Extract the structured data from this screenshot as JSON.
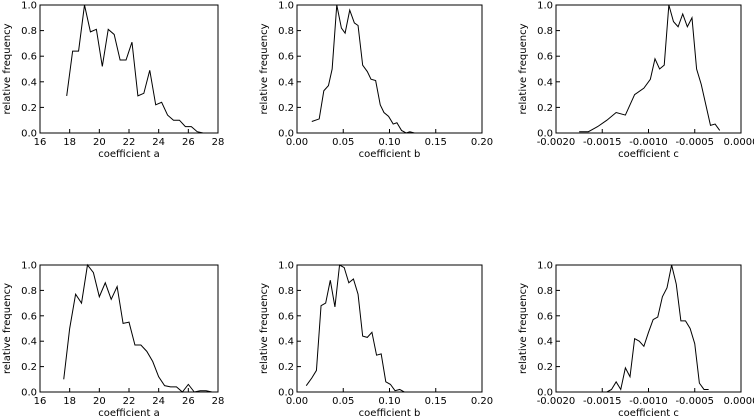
{
  "chart_data": [
    {
      "type": "line",
      "xlabel": "coefficient a",
      "ylabel": "relative frequency",
      "color": "#000000",
      "x": [
        17.8,
        18.2,
        18.6,
        19.0,
        19.4,
        19.8,
        20.2,
        20.6,
        21.0,
        21.4,
        21.8,
        22.2,
        22.6,
        23.0,
        23.4,
        23.8,
        24.2,
        24.6,
        25.0,
        25.4,
        25.8,
        26.2,
        26.6,
        27.0
      ],
      "values": [
        0.29,
        0.64,
        0.64,
        1.0,
        0.79,
        0.81,
        0.52,
        0.81,
        0.77,
        0.57,
        0.57,
        0.71,
        0.29,
        0.31,
        0.49,
        0.22,
        0.24,
        0.14,
        0.1,
        0.1,
        0.05,
        0.05,
        0.01,
        0.0
      ],
      "xlim": [
        16,
        28
      ],
      "xticks": [
        16,
        18,
        20,
        22,
        24,
        26,
        28
      ],
      "ylim": [
        0,
        1
      ],
      "yticks": [
        {
          "value": 0,
          "label": "0.0"
        },
        0.2,
        0.4,
        0.6,
        0.8,
        {
          "value": 1,
          "label": "1.0"
        }
      ]
    },
    {
      "type": "line",
      "xlabel": "coefficient b",
      "ylabel": "relative frequency",
      "color": "#000000",
      "x": [
        0.016,
        0.024,
        0.029,
        0.034,
        0.038,
        0.043,
        0.048,
        0.052,
        0.057,
        0.062,
        0.066,
        0.071,
        0.076,
        0.08,
        0.085,
        0.09,
        0.094,
        0.099,
        0.104,
        0.108,
        0.113,
        0.118,
        0.122,
        0.127
      ],
      "values": [
        0.09,
        0.11,
        0.33,
        0.37,
        0.5,
        1.0,
        0.82,
        0.78,
        0.96,
        0.86,
        0.84,
        0.53,
        0.48,
        0.42,
        0.41,
        0.22,
        0.16,
        0.13,
        0.07,
        0.08,
        0.02,
        0.0,
        0.01,
        0.0
      ],
      "xlim": [
        0,
        0.2
      ],
      "xticks": [
        {
          "value": 0,
          "label": "0.00"
        },
        0.05,
        {
          "value": 0.1,
          "label": "0.10"
        },
        0.15,
        {
          "value": 0.2,
          "label": "0.20"
        }
      ],
      "ylim": [
        0,
        1
      ],
      "yticks": [
        {
          "value": 0,
          "label": "0.0"
        },
        0.2,
        0.4,
        0.6,
        0.8,
        {
          "value": 1,
          "label": "1.0"
        }
      ]
    },
    {
      "type": "line",
      "xlabel": "coefficient c",
      "ylabel": "relative frequency",
      "color": "#000000",
      "x": [
        -0.00175,
        -0.00165,
        -0.00155,
        -0.00145,
        -0.00135,
        -0.00125,
        -0.00115,
        -0.00105,
        -0.00098,
        -0.00093,
        -0.00088,
        -0.00083,
        -0.00078,
        -0.00073,
        -0.00068,
        -0.00063,
        -0.00058,
        -0.00053,
        -0.00048,
        -0.00043,
        -0.00038,
        -0.00033,
        -0.00028,
        -0.00023
      ],
      "values": [
        0.01,
        0.01,
        0.05,
        0.1,
        0.16,
        0.14,
        0.3,
        0.35,
        0.42,
        0.58,
        0.5,
        0.53,
        1.0,
        0.87,
        0.83,
        0.93,
        0.83,
        0.9,
        0.5,
        0.38,
        0.22,
        0.06,
        0.07,
        0.02
      ],
      "xlim": [
        -0.002,
        0
      ],
      "xticks": [
        {
          "value": -0.002,
          "label": "-0.0020"
        },
        -0.0015,
        {
          "value": -0.001,
          "label": "-0.0010"
        },
        -0.0005,
        {
          "value": 0,
          "label": "0.0000"
        }
      ],
      "ylim": [
        0,
        1
      ],
      "yticks": [
        {
          "value": 0,
          "label": "0.0"
        },
        0.2,
        0.4,
        0.6,
        0.8,
        {
          "value": 1,
          "label": "1.0"
        }
      ]
    },
    {
      "type": "line",
      "xlabel": "coefficient a",
      "ylabel": "relative frequency",
      "color": "#000000",
      "x": [
        17.6,
        18.0,
        18.4,
        18.8,
        19.2,
        19.6,
        20.0,
        20.4,
        20.8,
        21.2,
        21.6,
        22.0,
        22.4,
        22.8,
        23.2,
        23.6,
        24.0,
        24.4,
        24.8,
        25.2,
        25.6,
        26.0,
        26.4,
        26.8,
        27.2,
        27.6
      ],
      "values": [
        0.1,
        0.5,
        0.77,
        0.7,
        1.0,
        0.94,
        0.75,
        0.86,
        0.73,
        0.83,
        0.54,
        0.55,
        0.37,
        0.37,
        0.32,
        0.24,
        0.12,
        0.05,
        0.04,
        0.04,
        0.0,
        0.06,
        0.0,
        0.01,
        0.01,
        0.0
      ],
      "xlim": [
        16,
        28
      ],
      "xticks": [
        16,
        18,
        20,
        22,
        24,
        26,
        28
      ],
      "ylim": [
        0,
        1
      ],
      "yticks": [
        {
          "value": 0,
          "label": "0.0"
        },
        0.2,
        0.4,
        0.6,
        0.8,
        {
          "value": 1,
          "label": "1.0"
        }
      ]
    },
    {
      "type": "line",
      "xlabel": "coefficient b",
      "ylabel": "relative frequency",
      "color": "#000000",
      "x": [
        0.01,
        0.016,
        0.021,
        0.026,
        0.031,
        0.036,
        0.041,
        0.046,
        0.051,
        0.056,
        0.061,
        0.066,
        0.071,
        0.076,
        0.081,
        0.086,
        0.091,
        0.096,
        0.101,
        0.106,
        0.111,
        0.116
      ],
      "values": [
        0.05,
        0.11,
        0.17,
        0.68,
        0.7,
        0.88,
        0.67,
        1.0,
        0.98,
        0.86,
        0.89,
        0.77,
        0.44,
        0.43,
        0.47,
        0.29,
        0.3,
        0.08,
        0.06,
        0.01,
        0.02,
        0.0
      ],
      "xlim": [
        0,
        0.2
      ],
      "xticks": [
        {
          "value": 0,
          "label": "0.00"
        },
        0.05,
        {
          "value": 0.1,
          "label": "0.10"
        },
        0.15,
        {
          "value": 0.2,
          "label": "0.20"
        }
      ],
      "ylim": [
        0,
        1
      ],
      "yticks": [
        {
          "value": 0,
          "label": "0.0"
        },
        0.2,
        0.4,
        0.6,
        0.8,
        {
          "value": 1,
          "label": "1.0"
        }
      ]
    },
    {
      "type": "line",
      "xlabel": "coefficient c",
      "ylabel": "relative frequency",
      "color": "#000000",
      "x": [
        -0.00145,
        -0.0014,
        -0.00135,
        -0.0013,
        -0.00125,
        -0.0012,
        -0.00115,
        -0.0011,
        -0.00105,
        -0.001,
        -0.00095,
        -0.0009,
        -0.00085,
        -0.0008,
        -0.00075,
        -0.0007,
        -0.00065,
        -0.0006,
        -0.00055,
        -0.0005,
        -0.00045,
        -0.0004,
        -0.00035
      ],
      "values": [
        0.0,
        0.02,
        0.08,
        0.02,
        0.19,
        0.12,
        0.42,
        0.4,
        0.36,
        0.47,
        0.57,
        0.59,
        0.75,
        0.82,
        1.0,
        0.85,
        0.56,
        0.56,
        0.5,
        0.38,
        0.07,
        0.02,
        0.02
      ],
      "xlim": [
        -0.002,
        0
      ],
      "xticks": [
        {
          "value": -0.002,
          "label": "-0.0020"
        },
        -0.0015,
        {
          "value": -0.001,
          "label": "-0.0010"
        },
        -0.0005,
        {
          "value": 0,
          "label": "0.0000"
        }
      ],
      "ylim": [
        0,
        1
      ],
      "yticks": [
        {
          "value": 0,
          "label": "0.0"
        },
        0.2,
        0.4,
        0.6,
        0.8,
        {
          "value": 1,
          "label": "1.0"
        }
      ]
    }
  ]
}
